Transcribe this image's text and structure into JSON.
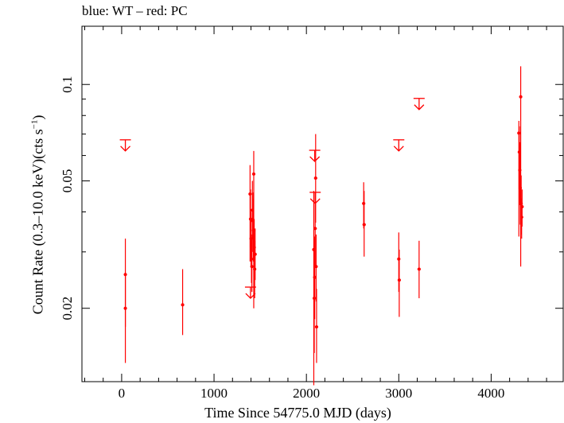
{
  "chart_data": {
    "type": "scatter",
    "title": "blue: WT – red: PC",
    "xlabel": "Time Since 54775.0 MJD (days)",
    "ylabel_main": "Count Rate (0.3–10.0 keV)(cts s",
    "ylabel_sup": "−1",
    "ylabel_end": ")",
    "xlim": [
      -430,
      4780
    ],
    "ylim": [
      0.0118,
      0.152
    ],
    "yscale": "log",
    "grid": false,
    "xticks": [
      0,
      1000,
      2000,
      3000,
      4000
    ],
    "xtick_labels": [
      "0",
      "1000",
      "2000",
      "3000",
      "4000"
    ],
    "yticks": [
      0.02,
      0.05,
      0.1
    ],
    "ytick_labels": [
      "0.02",
      "0.05",
      "0.1"
    ],
    "series_color": "#ff0000",
    "points": [
      {
        "x": 40,
        "y": 0.0255,
        "lo": 0.0175,
        "hi": 0.033
      },
      {
        "x": 40,
        "y": 0.02,
        "lo": 0.0135,
        "hi": 0.0255
      },
      {
        "x": 660,
        "y": 0.0205,
        "lo": 0.0165,
        "hi": 0.0265
      },
      {
        "x": 1390,
        "y": 0.0455,
        "lo": 0.028,
        "hi": 0.056
      },
      {
        "x": 1395,
        "y": 0.038,
        "lo": 0.031,
        "hi": 0.047
      },
      {
        "x": 1400,
        "y": 0.033,
        "lo": 0.027,
        "hi": 0.04
      },
      {
        "x": 1405,
        "y": 0.0285,
        "lo": 0.024,
        "hi": 0.034
      },
      {
        "x": 1410,
        "y": 0.027,
        "lo": 0.0225,
        "hi": 0.033
      },
      {
        "x": 1415,
        "y": 0.0405,
        "lo": 0.033,
        "hi": 0.05
      },
      {
        "x": 1420,
        "y": 0.0375,
        "lo": 0.03,
        "hi": 0.046
      },
      {
        "x": 1425,
        "y": 0.035,
        "lo": 0.028,
        "hi": 0.044
      },
      {
        "x": 1430,
        "y": 0.0525,
        "lo": 0.02,
        "hi": 0.062
      },
      {
        "x": 1435,
        "y": 0.031,
        "lo": 0.025,
        "hi": 0.038
      },
      {
        "x": 1440,
        "y": 0.0265,
        "lo": 0.0215,
        "hi": 0.0325
      },
      {
        "x": 1445,
        "y": 0.0295,
        "lo": 0.0245,
        "hi": 0.0355
      },
      {
        "x": 2080,
        "y": 0.0305,
        "lo": 0.0115,
        "hi": 0.0465
      },
      {
        "x": 2085,
        "y": 0.0215,
        "lo": 0.0145,
        "hi": 0.028
      },
      {
        "x": 2090,
        "y": 0.025,
        "lo": 0.0185,
        "hi": 0.0335
      },
      {
        "x": 2095,
        "y": 0.0355,
        "lo": 0.027,
        "hi": 0.046
      },
      {
        "x": 2100,
        "y": 0.051,
        "lo": 0.037,
        "hi": 0.07
      },
      {
        "x": 2105,
        "y": 0.027,
        "lo": 0.021,
        "hi": 0.034
      },
      {
        "x": 2110,
        "y": 0.0175,
        "lo": 0.0135,
        "hi": 0.023
      },
      {
        "x": 2620,
        "y": 0.0425,
        "lo": 0.0355,
        "hi": 0.0495
      },
      {
        "x": 2625,
        "y": 0.0365,
        "lo": 0.029,
        "hi": 0.0465
      },
      {
        "x": 3000,
        "y": 0.0285,
        "lo": 0.0225,
        "hi": 0.0345
      },
      {
        "x": 3005,
        "y": 0.0245,
        "lo": 0.0188,
        "hi": 0.0305
      },
      {
        "x": 3220,
        "y": 0.0265,
        "lo": 0.0215,
        "hi": 0.0325
      },
      {
        "x": 4300,
        "y": 0.0705,
        "lo": 0.0335,
        "hi": 0.077
      },
      {
        "x": 4305,
        "y": 0.0615,
        "lo": 0.047,
        "hi": 0.074
      },
      {
        "x": 4310,
        "y": 0.054,
        "lo": 0.042,
        "hi": 0.066
      },
      {
        "x": 4315,
        "y": 0.0475,
        "lo": 0.0365,
        "hi": 0.059
      },
      {
        "x": 4320,
        "y": 0.0915,
        "lo": 0.027,
        "hi": 0.114
      },
      {
        "x": 4325,
        "y": 0.0425,
        "lo": 0.034,
        "hi": 0.052
      },
      {
        "x": 4330,
        "y": 0.0385,
        "lo": 0.033,
        "hi": 0.044
      },
      {
        "x": 4335,
        "y": 0.0415,
        "lo": 0.036,
        "hi": 0.047
      }
    ],
    "upper_limits": [
      {
        "x": 40,
        "y": 0.062
      },
      {
        "x": 1395,
        "y": 0.0215
      },
      {
        "x": 2090,
        "y": 0.0575
      },
      {
        "x": 2095,
        "y": 0.0425
      },
      {
        "x": 3000,
        "y": 0.062
      },
      {
        "x": 3220,
        "y": 0.0835
      }
    ]
  }
}
